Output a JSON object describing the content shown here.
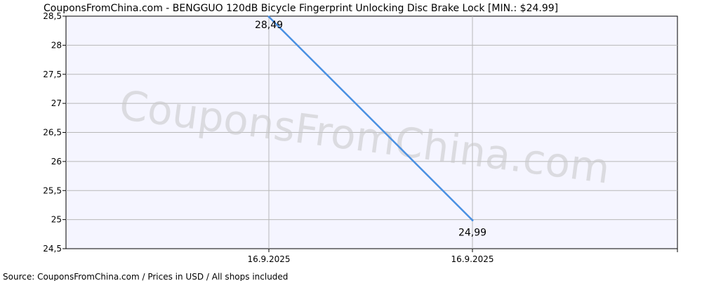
{
  "chart_data": {
    "type": "line",
    "title": "CouponsFromChina.com - BENGGUO 120dB Bicycle Fingerprint Unlocking Disc Brake Lock [MIN.: $24.99]",
    "x_categories": [
      "16.9.2025",
      "16.9.2025"
    ],
    "series": [
      {
        "values": [
          28.49,
          24.99
        ],
        "value_labels": [
          "28,49",
          "24,99"
        ],
        "color": "#4a90e2"
      }
    ],
    "y_ticks": [
      "24,5",
      "25",
      "25,5",
      "26",
      "26,5",
      "27",
      "27,5",
      "28",
      "28,5"
    ],
    "ylim": [
      24.5,
      28.5
    ],
    "grid": true,
    "watermark": "CouponsFromChina.com",
    "source_text": "Source: CouponsFromChina.com / Prices in USD / All shops included",
    "colors": {
      "plot_background": "#f5f5ff",
      "grid": "#b8b8b8",
      "axis": "#000000",
      "line": "#4a90e2",
      "watermark": "#c7c7c7"
    }
  }
}
